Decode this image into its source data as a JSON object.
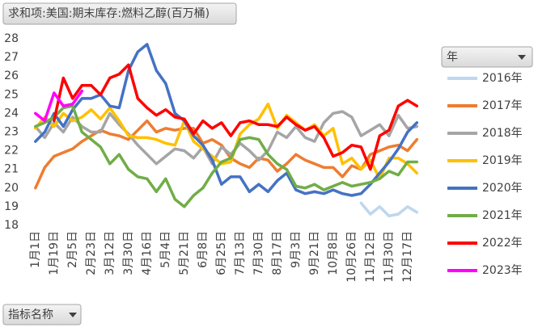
{
  "chart_data": {
    "type": "line",
    "value_field": "求和项:美国:期末库存:燃料乙醇(百万桶)",
    "axis_field": "指标名称",
    "legend_title": "年",
    "categories": [
      "1月1日",
      null,
      "1月19日",
      null,
      "2月5日",
      null,
      "2月23日",
      null,
      "3月12日",
      null,
      "3月30日",
      null,
      "4月16日",
      null,
      "5月4日",
      null,
      "5月21日",
      null,
      "6月8日",
      null,
      "6月25日",
      null,
      "7月13日",
      null,
      "7月30日",
      null,
      "8月17日",
      null,
      "9月3日",
      null,
      "9月21日",
      null,
      "10月8日",
      null,
      "10月26日",
      null,
      "11月12日",
      null,
      "11月30日",
      null,
      "12月17日",
      null
    ],
    "ylim": [
      18,
      28
    ],
    "yticks": [
      18,
      19,
      20,
      21,
      22,
      23,
      24,
      25,
      26,
      27,
      28
    ],
    "grid": false,
    "legend": "right",
    "series": [
      {
        "name": "2016年",
        "color": "#bdd7ee",
        "values": [
          null,
          null,
          null,
          null,
          null,
          null,
          null,
          null,
          null,
          null,
          null,
          null,
          null,
          null,
          null,
          null,
          null,
          null,
          null,
          null,
          null,
          null,
          null,
          null,
          null,
          null,
          null,
          null,
          null,
          null,
          null,
          null,
          null,
          null,
          null,
          19.2,
          18.6,
          19.0,
          18.5,
          18.6,
          19.0,
          18.7
        ]
      },
      {
        "name": "2017年",
        "color": "#ed7d31",
        "values": [
          20.0,
          21.1,
          21.7,
          21.9,
          22.1,
          22.5,
          22.8,
          23.1,
          22.9,
          22.8,
          22.6,
          23.1,
          23.6,
          23.0,
          23.2,
          23.1,
          23.2,
          23.2,
          22.4,
          22.6,
          22.3,
          21.6,
          21.3,
          21.1,
          21.6,
          21.5,
          20.9,
          21.3,
          21.8,
          21.5,
          21.3,
          21.1,
          21.1,
          20.6,
          21.2,
          21.0,
          21.8,
          22.0,
          22.2,
          22.3,
          22.0,
          22.6
        ]
      },
      {
        "name": "2018年",
        "color": "#a5a5a5",
        "values": [
          23.3,
          22.7,
          23.5,
          23.0,
          23.8,
          23.3,
          23.0,
          23.0,
          24.0,
          23.4,
          22.9,
          22.3,
          21.8,
          21.3,
          21.7,
          22.1,
          22.0,
          21.6,
          22.2,
          21.3,
          22.2,
          21.8,
          22.4,
          22.0,
          21.5,
          22.0,
          23.0,
          22.7,
          23.3,
          22.7,
          22.5,
          23.5,
          24.0,
          24.1,
          23.8,
          22.8,
          23.1,
          23.4,
          22.8,
          23.9,
          23.2,
          23.3
        ]
      },
      {
        "name": "2019年",
        "color": "#ffc000",
        "values": [
          23.2,
          23.8,
          23.3,
          24.0,
          23.6,
          23.8,
          24.2,
          23.7,
          24.3,
          23.6,
          22.8,
          22.7,
          22.7,
          22.6,
          22.4,
          22.3,
          23.6,
          22.5,
          22.1,
          21.7,
          21.3,
          21.4,
          22.9,
          23.4,
          23.7,
          24.5,
          23.2,
          23.9,
          23.5,
          23.1,
          23.4,
          22.8,
          23.2,
          21.3,
          21.6,
          21.0,
          21.5,
          20.5,
          21.6,
          21.6,
          21.3,
          20.8
        ]
      },
      {
        "name": "2020年",
        "color": "#4472c4",
        "values": [
          22.5,
          23.0,
          24.0,
          23.3,
          24.2,
          24.8,
          24.8,
          25.0,
          24.4,
          24.3,
          26.3,
          27.3,
          27.7,
          26.3,
          25.6,
          24.0,
          23.6,
          22.8,
          22.3,
          21.5,
          20.2,
          20.6,
          20.6,
          19.8,
          20.2,
          19.8,
          20.4,
          20.8,
          19.9,
          19.7,
          19.8,
          19.7,
          19.9,
          19.7,
          19.6,
          19.7,
          20.2,
          20.8,
          21.4,
          22.1,
          23.0,
          23.5
        ]
      },
      {
        "name": "2021年",
        "color": "#70ad47",
        "values": [
          23.3,
          23.5,
          23.8,
          24.3,
          24.4,
          23.0,
          22.6,
          22.2,
          21.3,
          21.8,
          21.0,
          20.6,
          20.5,
          19.8,
          20.5,
          19.4,
          19.0,
          19.6,
          20.0,
          20.8,
          21.4,
          21.6,
          22.6,
          22.7,
          22.6,
          21.8,
          21.3,
          21.0,
          20.1,
          20.0,
          20.2,
          19.9,
          20.1,
          20.3,
          20.1,
          20.2,
          20.3,
          20.5,
          20.9,
          20.7,
          21.4,
          21.4
        ]
      },
      {
        "name": "2022年",
        "color": "#ff0000",
        "values": [
          null,
          null,
          23.6,
          25.9,
          24.8,
          25.5,
          25.5,
          25.0,
          25.9,
          26.1,
          26.6,
          24.8,
          24.3,
          23.9,
          24.2,
          23.8,
          23.7,
          22.9,
          23.6,
          23.2,
          23.5,
          22.8,
          23.5,
          23.6,
          23.4,
          23.4,
          23.3,
          23.8,
          23.4,
          23.1,
          23.3,
          22.7,
          21.7,
          21.9,
          22.3,
          22.2,
          21.0,
          22.8,
          23.1,
          24.4,
          24.7,
          24.4
        ]
      },
      {
        "name": "2023年",
        "color": "#ff00ff",
        "values": [
          24.0,
          23.6,
          25.1,
          24.4,
          24.5,
          25.2,
          null,
          null,
          null,
          null,
          null,
          null,
          null,
          null,
          null,
          null,
          null,
          null,
          null,
          null,
          null,
          null,
          null,
          null,
          null,
          null,
          null,
          null,
          null,
          null,
          null,
          null,
          null,
          null,
          null,
          null,
          null,
          null,
          null,
          null,
          null,
          null
        ]
      }
    ]
  }
}
